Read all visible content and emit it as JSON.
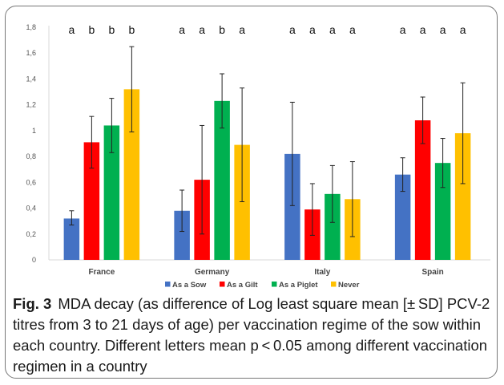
{
  "chart_data": {
    "type": "bar",
    "categories": [
      "France",
      "Germany",
      "Italy",
      "Spain"
    ],
    "series": [
      {
        "name": "As a Sow",
        "color": "#4472C4",
        "values": [
          0.32,
          0.38,
          0.82,
          0.66
        ],
        "err_low": [
          0.27,
          0.22,
          0.42,
          0.53
        ],
        "err_high": [
          0.38,
          0.54,
          1.22,
          0.79
        ]
      },
      {
        "name": "As a Gilt",
        "color": "#FF0000",
        "values": [
          0.91,
          0.62,
          0.39,
          1.08
        ],
        "err_low": [
          0.71,
          0.2,
          0.19,
          0.9
        ],
        "err_high": [
          1.11,
          1.04,
          0.59,
          1.26
        ]
      },
      {
        "name": "As a Piglet",
        "color": "#00B050",
        "values": [
          1.04,
          1.23,
          0.51,
          0.75
        ],
        "err_low": [
          0.83,
          1.02,
          0.29,
          0.56
        ],
        "err_high": [
          1.25,
          1.44,
          0.73,
          0.94
        ]
      },
      {
        "name": "Never",
        "color": "#FFC000",
        "values": [
          1.32,
          0.89,
          0.47,
          0.98
        ],
        "err_low": [
          0.99,
          0.45,
          0.18,
          0.59
        ],
        "err_high": [
          1.65,
          1.33,
          0.76,
          1.37
        ]
      }
    ],
    "significance_letters": [
      [
        "a",
        "b",
        "b",
        "b"
      ],
      [
        "a",
        "a",
        "b",
        "a"
      ],
      [
        "a",
        "a",
        "a",
        "a"
      ],
      [
        "a",
        "a",
        "a",
        "a"
      ]
    ],
    "ylim": [
      0,
      1.8
    ],
    "yticks": [
      "0",
      "0,2",
      "0,4",
      "0,6",
      "0,8",
      "1",
      "1,2",
      "1,4",
      "1,6",
      "1,8"
    ],
    "grid": false,
    "legend_position": "bottom"
  },
  "caption": {
    "label": "Fig. 3",
    "text": "MDA decay (as difference of Log least square mean [± SD] PCV-2 titres from 3 to 21 days of age) per vaccination regime of the sow within each country. Different letters mean p < 0.05 among different vaccination regimen in a country"
  }
}
